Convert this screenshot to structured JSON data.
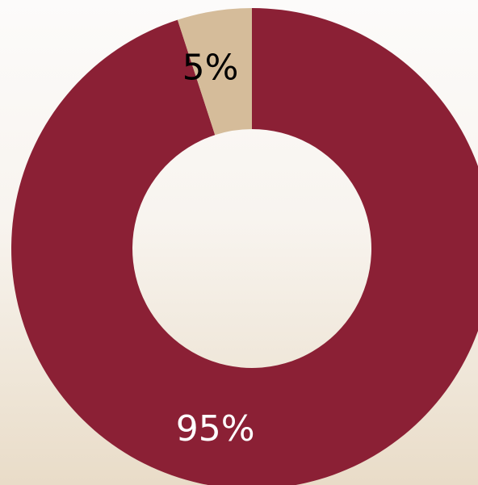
{
  "chart_data": {
    "type": "pie",
    "donut": true,
    "categories": [
      "",
      ""
    ],
    "values": [
      95,
      5
    ],
    "labels": [
      "95%",
      "5%"
    ],
    "colors": [
      "#8b2035",
      "#d5bc9a"
    ],
    "label_colors": [
      "#ffffff",
      "#000000"
    ],
    "title": "",
    "legend": "none"
  },
  "background_colors": [
    "#fcfbfa",
    "#e9dcc8"
  ]
}
